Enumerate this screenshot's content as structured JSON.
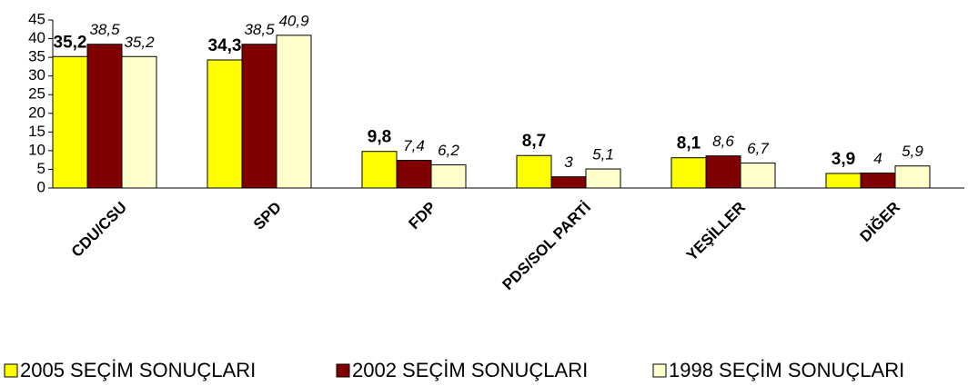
{
  "chart_data": {
    "type": "bar",
    "categories": [
      "CDU/CSU",
      "SPD",
      "FDP",
      "PDS/SOL PARTİ",
      "YEŞİLLER",
      "DİĞER"
    ],
    "series": [
      {
        "name": "2005 SEÇİM SONUÇLARI",
        "color": "#ffff00",
        "values": [
          35.2,
          34.3,
          9.8,
          8.7,
          8.1,
          3.9
        ],
        "value_labels": [
          "35,2",
          "34,3",
          "9,8",
          "8,7",
          "8,1",
          "3,9"
        ]
      },
      {
        "name": "2002 SEÇİM SONUÇLARI",
        "color": "#800000",
        "values": [
          38.5,
          38.5,
          7.4,
          3,
          8.6,
          4
        ],
        "value_labels": [
          "38,5",
          "38,5",
          "7,4",
          "3",
          "8,6",
          "4"
        ]
      },
      {
        "name": "1998 SEÇİM SONUÇLARI",
        "color": "#ffffcc",
        "values": [
          35.2,
          40.9,
          6.2,
          5.1,
          6.7,
          5.9
        ],
        "value_labels": [
          "35,2",
          "40,9",
          "6,2",
          "5,1",
          "6,7",
          "5,9"
        ]
      }
    ],
    "ylim": [
      0,
      45
    ],
    "yticks": [
      0,
      5,
      10,
      15,
      20,
      25,
      30,
      35,
      40,
      45
    ],
    "legend": "bottom"
  }
}
